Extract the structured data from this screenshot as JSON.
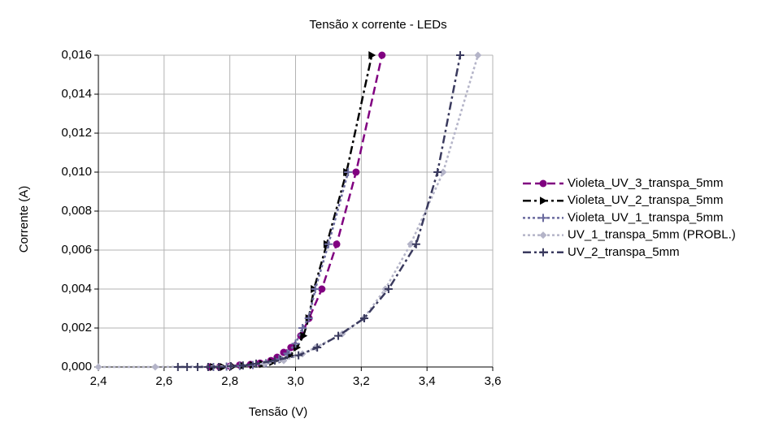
{
  "chart_data": {
    "type": "line",
    "title": "Tensão x corrente - LEDs",
    "x_label": "Tensão (V)",
    "y_label": "Corrente (A)",
    "xlim": [
      2.4,
      3.6
    ],
    "ylim": [
      0,
      0.016
    ],
    "xticks": [
      {
        "value": 2.4,
        "label": "2,4"
      },
      {
        "value": 2.6,
        "label": "2,6"
      },
      {
        "value": 2.8,
        "label": "2,8"
      },
      {
        "value": 3.0,
        "label": "3,0"
      },
      {
        "value": 3.2,
        "label": "3,2"
      },
      {
        "value": 3.4,
        "label": "3,4"
      },
      {
        "value": 3.6,
        "label": "3,6"
      }
    ],
    "yticks": [
      {
        "value": 0,
        "label": "0,000"
      },
      {
        "value": 0.002,
        "label": "0,002"
      },
      {
        "value": 0.004,
        "label": "0,004"
      },
      {
        "value": 0.006,
        "label": "0,006"
      },
      {
        "value": 0.008,
        "label": "0,008"
      },
      {
        "value": 0.01,
        "label": "0,010"
      },
      {
        "value": 0.012,
        "label": "0,012"
      },
      {
        "value": 0.014,
        "label": "0,014"
      },
      {
        "value": 0.016,
        "label": "0,016"
      }
    ],
    "grid": true,
    "legend": "right",
    "series": [
      {
        "name": "Violeta_UV_3_transpa_5mm",
        "color": "#800080",
        "marker": "circle",
        "line_style": "dashed",
        "x": [
          2.739,
          2.769,
          2.801,
          2.83,
          2.863,
          2.892,
          2.925,
          2.944,
          2.964,
          2.986,
          3.016,
          3.041,
          3.08,
          3.125,
          3.184,
          3.263
        ],
        "values": [
          0,
          0,
          4e-05,
          0.0001,
          0.00013,
          0.0002,
          0.00033,
          0.0005,
          0.00075,
          0.001,
          0.0016,
          0.0025,
          0.004,
          0.0063,
          0.01,
          0.016
        ]
      },
      {
        "name": "Violeta_UV_2_transpa_5mm",
        "color": "#000000",
        "marker": "triangle",
        "line_style": "dashdot",
        "x": [
          2.75,
          2.78,
          2.81,
          2.84,
          2.87,
          2.9,
          2.93,
          2.96,
          2.984,
          3.004,
          3.024,
          3.04,
          3.056,
          3.095,
          3.155,
          3.232
        ],
        "values": [
          0,
          0,
          3e-05,
          6e-05,
          0.0001,
          0.00015,
          0.00025,
          0.0004,
          0.0006,
          0.001,
          0.0016,
          0.0025,
          0.004,
          0.0063,
          0.01,
          0.016
        ]
      },
      {
        "name": "Violeta_UV_1_transpa_5mm",
        "color": "#6a6a9e",
        "marker": "plus",
        "line_style": "dotted",
        "x": [
          2.75,
          2.79,
          2.83,
          2.87,
          2.91,
          2.95,
          2.975,
          3.0,
          3.021,
          3.04,
          3.06,
          3.1,
          3.16
        ],
        "values": [
          0,
          2e-05,
          5e-05,
          0.0001,
          0.0002,
          0.0004,
          0.0007,
          0.0012,
          0.002,
          0.0025,
          0.004,
          0.0063,
          0.01
        ]
      },
      {
        "name": "UV_1_transpa_5mm (PROBL.)",
        "color": "#b4b4c8",
        "marker": "diamond",
        "line_style": "dotted",
        "x": [
          2.4,
          2.573,
          2.801,
          2.905,
          2.964,
          3.021,
          3.061,
          3.142,
          3.207,
          3.273,
          3.35,
          3.449,
          3.555
        ],
        "values": [
          0,
          0,
          4e-05,
          0.00017,
          0.00033,
          0.00067,
          0.001,
          0.0017,
          0.0025,
          0.004,
          0.0063,
          0.01,
          0.016
        ]
      },
      {
        "name": "UV_2_transpa_5mm",
        "color": "#3a3a5e",
        "marker": "plus",
        "line_style": "dashdot",
        "x": [
          2.642,
          2.67,
          2.702,
          2.734,
          2.766,
          2.803,
          2.84,
          2.88,
          2.937,
          3.009,
          3.066,
          3.13,
          3.209,
          3.283,
          3.367,
          3.432,
          3.501
        ],
        "values": [
          0,
          0,
          0,
          0,
          0,
          4e-05,
          8e-05,
          0.00017,
          0.00033,
          0.0006,
          0.001,
          0.0016,
          0.0025,
          0.004,
          0.0063,
          0.01,
          0.016
        ]
      }
    ]
  }
}
